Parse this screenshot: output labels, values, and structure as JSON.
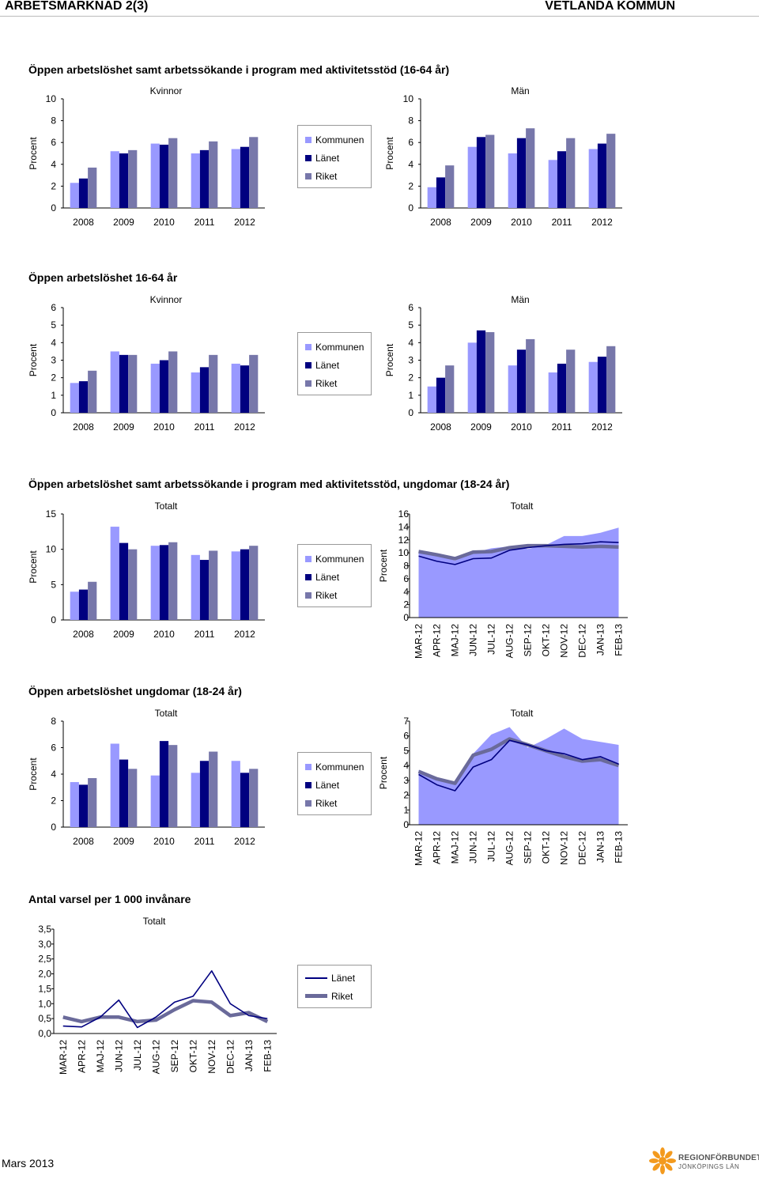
{
  "header": {
    "left": "ARBETSMARKNAD 2(3)",
    "right": "VETLANDA KOMMUN"
  },
  "footer": {
    "date": "Mars 2013",
    "logo_line1": "REGIONFÖRBUNDET",
    "logo_line2": "JÖNKÖPINGS LÄN"
  },
  "colors": {
    "kommunen": "#9999ff",
    "lanet": "#000080",
    "riket": "#7777aa",
    "area": "#9999ff",
    "line_lanet": "#000080",
    "line_riket": "#6a6a9a"
  },
  "sections": [
    {
      "title": "Öppen arbetslöshet samt arbetssökande i program med aktivitetsstöd (16-64 år)"
    },
    {
      "title": "Öppen arbetslöshet 16-64 år"
    },
    {
      "title": "Öppen arbetslöshet samt arbetssökande i program med aktivitetsstöd, ungdomar (18-24 år)"
    },
    {
      "title": "Öppen arbetslöshet ungdomar (18-24 år)"
    },
    {
      "title": "Antal varsel per 1 000 invånare"
    }
  ],
  "legend_bars": [
    "Kommunen",
    "Länet",
    "Riket"
  ],
  "legend_lines": [
    "Länet",
    "Riket"
  ],
  "chart_data": [
    {
      "id": "c1k",
      "type": "bar",
      "title": "Kvinnor",
      "ylabel": "Procent",
      "ylim": [
        0,
        10
      ],
      "yticks": [
        0,
        2,
        4,
        6,
        8,
        10
      ],
      "categories": [
        "2008",
        "2009",
        "2010",
        "2011",
        "2012"
      ],
      "series": [
        {
          "name": "Kommunen",
          "values": [
            2.3,
            5.2,
            5.9,
            5.0,
            5.4
          ]
        },
        {
          "name": "Länet",
          "values": [
            2.7,
            5.0,
            5.8,
            5.3,
            5.6
          ]
        },
        {
          "name": "Riket",
          "values": [
            3.7,
            5.3,
            6.4,
            6.1,
            6.5
          ]
        }
      ]
    },
    {
      "id": "c1m",
      "type": "bar",
      "title": "Män",
      "ylabel": "Procent",
      "ylim": [
        0,
        10
      ],
      "yticks": [
        0,
        2,
        4,
        6,
        8,
        10
      ],
      "categories": [
        "2008",
        "2009",
        "2010",
        "2011",
        "2012"
      ],
      "series": [
        {
          "name": "Kommunen",
          "values": [
            1.9,
            5.6,
            5.0,
            4.4,
            5.4
          ]
        },
        {
          "name": "Länet",
          "values": [
            2.8,
            6.5,
            6.4,
            5.2,
            5.9
          ]
        },
        {
          "name": "Riket",
          "values": [
            3.9,
            6.7,
            7.3,
            6.4,
            6.8
          ]
        }
      ]
    },
    {
      "id": "c2k",
      "type": "bar",
      "title": "Kvinnor",
      "ylabel": "Procent",
      "ylim": [
        0,
        6
      ],
      "yticks": [
        0,
        1,
        2,
        3,
        4,
        5,
        6
      ],
      "categories": [
        "2008",
        "2009",
        "2010",
        "2011",
        "2012"
      ],
      "series": [
        {
          "name": "Kommunen",
          "values": [
            1.7,
            3.5,
            2.8,
            2.3,
            2.8
          ]
        },
        {
          "name": "Länet",
          "values": [
            1.8,
            3.3,
            3.0,
            2.6,
            2.7
          ]
        },
        {
          "name": "Riket",
          "values": [
            2.4,
            3.3,
            3.5,
            3.3,
            3.3
          ]
        }
      ]
    },
    {
      "id": "c2m",
      "type": "bar",
      "title": "Män",
      "ylabel": "Procent",
      "ylim": [
        0,
        6
      ],
      "yticks": [
        0,
        1,
        2,
        3,
        4,
        5,
        6
      ],
      "categories": [
        "2008",
        "2009",
        "2010",
        "2011",
        "2012"
      ],
      "series": [
        {
          "name": "Kommunen",
          "values": [
            1.5,
            4.0,
            2.7,
            2.3,
            2.9
          ]
        },
        {
          "name": "Länet",
          "values": [
            2.0,
            4.7,
            3.6,
            2.8,
            3.2
          ]
        },
        {
          "name": "Riket",
          "values": [
            2.7,
            4.6,
            4.2,
            3.6,
            3.8
          ]
        }
      ]
    },
    {
      "id": "c3b",
      "type": "bar",
      "title": "Totalt",
      "ylabel": "Procent",
      "ylim": [
        0,
        15
      ],
      "yticks": [
        0,
        5,
        10,
        15
      ],
      "categories": [
        "2008",
        "2009",
        "2010",
        "2011",
        "2012"
      ],
      "series": [
        {
          "name": "Kommunen",
          "values": [
            4.0,
            13.2,
            10.5,
            9.2,
            9.7
          ]
        },
        {
          "name": "Länet",
          "values": [
            4.3,
            10.9,
            10.6,
            8.5,
            10.0
          ]
        },
        {
          "name": "Riket",
          "values": [
            5.4,
            10.0,
            11.0,
            9.8,
            10.5
          ]
        }
      ]
    },
    {
      "id": "c3l",
      "type": "area",
      "title": "Totalt",
      "ylabel": "Procent",
      "ylim": [
        0,
        16
      ],
      "yticks": [
        0,
        2,
        4,
        6,
        8,
        10,
        12,
        14,
        16
      ],
      "categories": [
        "MAR-12",
        "APR-12",
        "MAJ-12",
        "JUN-12",
        "JUL-12",
        "AUG-12",
        "SEP-12",
        "OKT-12",
        "NOV-12",
        "DEC-12",
        "JAN-13",
        "FEB-13"
      ],
      "area": {
        "name": "Kommunen",
        "values": [
          10.2,
          9.6,
          8.8,
          10.0,
          10.7,
          11.0,
          10.6,
          11.2,
          12.6,
          12.6,
          13.1,
          13.9
        ]
      },
      "series": [
        {
          "name": "Länet",
          "values": [
            9.5,
            8.7,
            8.2,
            9.1,
            9.2,
            10.4,
            10.8,
            11.1,
            11.3,
            11.4,
            11.7,
            11.6
          ]
        },
        {
          "name": "Riket",
          "values": [
            10.2,
            9.7,
            9.1,
            10.1,
            10.2,
            10.8,
            11.1,
            11.1,
            11.0,
            10.9,
            11.0,
            10.9
          ]
        }
      ]
    },
    {
      "id": "c4b",
      "type": "bar",
      "title": "Totalt",
      "ylabel": "Procent",
      "ylim": [
        0,
        8
      ],
      "yticks": [
        0,
        2,
        4,
        6,
        8
      ],
      "categories": [
        "2008",
        "2009",
        "2010",
        "2011",
        "2012"
      ],
      "series": [
        {
          "name": "Kommunen",
          "values": [
            3.4,
            6.3,
            3.9,
            4.1,
            5.0
          ]
        },
        {
          "name": "Länet",
          "values": [
            3.2,
            5.1,
            6.5,
            5.0,
            4.1
          ]
        },
        {
          "name": "Riket",
          "values": [
            3.7,
            4.4,
            6.2,
            5.7,
            4.4
          ]
        }
      ]
    },
    {
      "id": "c4l",
      "type": "area",
      "title": "Totalt",
      "ylabel": "Procent",
      "ylim": [
        0,
        7
      ],
      "yticks": [
        0,
        1,
        2,
        3,
        4,
        5,
        6,
        7
      ],
      "categories": [
        "MAR-12",
        "APR-12",
        "MAJ-12",
        "JUN-12",
        "JUL-12",
        "AUG-12",
        "SEP-12",
        "OKT-12",
        "NOV-12",
        "DEC-12",
        "JAN-13",
        "FEB-13"
      ],
      "area": {
        "name": "Kommunen",
        "values": [
          3.7,
          3.0,
          2.8,
          4.8,
          6.1,
          6.6,
          5.2,
          5.8,
          6.5,
          5.8,
          5.6,
          5.4
        ]
      },
      "series": [
        {
          "name": "Länet",
          "values": [
            3.4,
            2.7,
            2.3,
            3.9,
            4.4,
            5.7,
            5.4,
            5.0,
            4.8,
            4.4,
            4.6,
            4.1
          ]
        },
        {
          "name": "Riket",
          "values": [
            3.6,
            3.1,
            2.8,
            4.7,
            5.1,
            5.8,
            5.4,
            5.0,
            4.6,
            4.3,
            4.4,
            4.0
          ]
        }
      ]
    },
    {
      "id": "c5",
      "type": "line",
      "title": "Totalt",
      "ylabel": "",
      "ylim": [
        0,
        3.5
      ],
      "yticks": [
        "0,0",
        "0,5",
        "1,0",
        "1,5",
        "2,0",
        "2,5",
        "3,0",
        "3,5"
      ],
      "categories": [
        "MAR-12",
        "APR-12",
        "MAJ-12",
        "JUN-12",
        "JUL-12",
        "AUG-12",
        "SEP-12",
        "OKT-12",
        "NOV-12",
        "DEC-12",
        "JAN-13",
        "FEB-13"
      ],
      "series": [
        {
          "name": "Länet",
          "values": [
            0.25,
            0.22,
            0.55,
            1.12,
            0.2,
            0.55,
            1.05,
            1.25,
            2.1,
            1.0,
            0.6,
            0.5
          ]
        },
        {
          "name": "Riket",
          "values": [
            0.55,
            0.4,
            0.55,
            0.55,
            0.4,
            0.45,
            0.8,
            1.1,
            1.05,
            0.6,
            0.7,
            0.4
          ]
        }
      ]
    }
  ]
}
